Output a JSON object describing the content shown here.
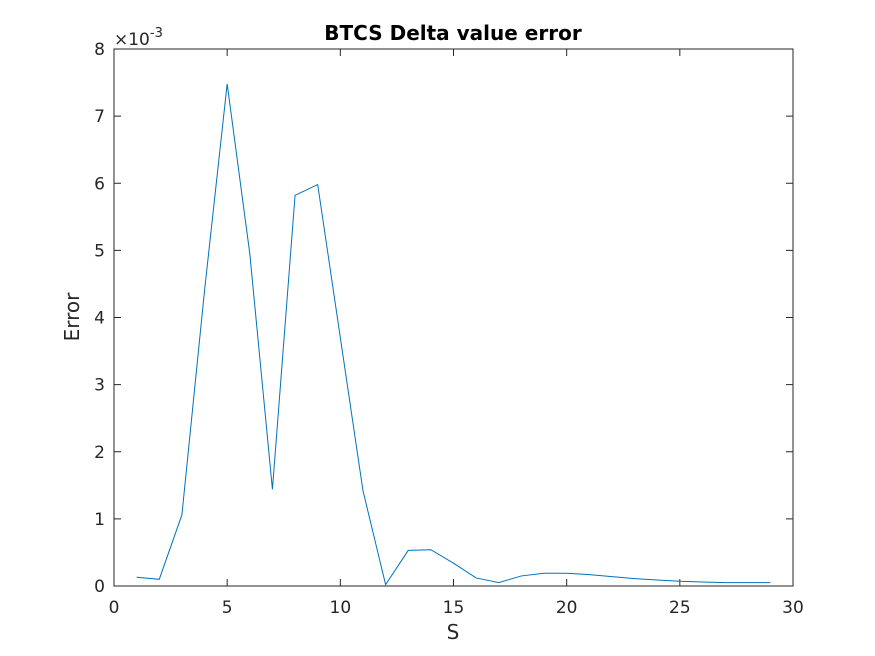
{
  "chart_data": {
    "type": "line",
    "title": "BTCS Delta value error",
    "xlabel": "S",
    "ylabel": "Error",
    "xlim": [
      0,
      30
    ],
    "ylim": [
      0,
      0.008
    ],
    "x_ticks": [
      0,
      5,
      10,
      15,
      20,
      25,
      30
    ],
    "y_ticks": [
      0,
      1,
      2,
      3,
      4,
      5,
      6,
      7,
      8
    ],
    "y_exponent_multiplier": "×10",
    "y_exponent_power": "-3",
    "grid": false,
    "line_color": "#0072bd",
    "series": [
      {
        "x": [
          1,
          2,
          3,
          4,
          5,
          6,
          7,
          8,
          9,
          10,
          11,
          12,
          13,
          14,
          15,
          16,
          17,
          18,
          19,
          20,
          21,
          22,
          23,
          24,
          25,
          26,
          27,
          28,
          29
        ],
        "y": [
          0.00013,
          0.0001,
          0.00106,
          0.0044,
          0.00748,
          0.00495,
          0.00144,
          0.00582,
          0.00598,
          0.0037,
          0.00142,
          2e-05,
          0.00053,
          0.00054,
          0.00034,
          0.00012,
          5e-05,
          0.00015,
          0.00019,
          0.00019,
          0.00017,
          0.00014,
          0.00011,
          9e-05,
          7e-05,
          6e-05,
          5e-05,
          5e-05,
          5e-05
        ]
      }
    ]
  }
}
